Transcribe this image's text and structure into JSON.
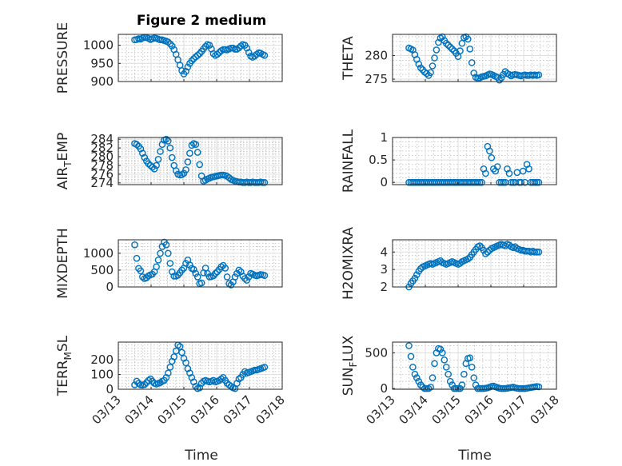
{
  "figure": {
    "title": "Figure 2 medium",
    "xlabel": "Time",
    "marker_color": "#0072bd",
    "axis_color": "#262626"
  },
  "chart_data": [
    {
      "id": "pressure",
      "type": "scatter",
      "title": "Figure 2 medium",
      "ylabel": "PRESSURE",
      "ylim": [
        900,
        1030
      ],
      "yticks": [
        900,
        950,
        1000
      ],
      "ytick_labels": [
        "900",
        "950",
        "1000"
      ],
      "xlim": [
        0,
        5
      ],
      "xticks": [
        0,
        1,
        2,
        3,
        4,
        5
      ],
      "xtick_labels": [
        "03/13",
        "03/14",
        "03/15",
        "03/16",
        "03/17",
        "03/18"
      ],
      "show_x_tick_labels": false,
      "x": [
        0.5,
        0.56,
        0.62,
        0.68,
        0.74,
        0.8,
        0.86,
        0.92,
        0.98,
        1.04,
        1.1,
        1.16,
        1.22,
        1.28,
        1.34,
        1.4,
        1.46,
        1.52,
        1.58,
        1.64,
        1.7,
        1.76,
        1.82,
        1.88,
        1.94,
        2.0,
        2.06,
        2.12,
        2.18,
        2.24,
        2.3,
        2.36,
        2.42,
        2.48,
        2.54,
        2.6,
        2.66,
        2.72,
        2.78,
        2.84,
        2.9,
        2.96,
        3.02,
        3.08,
        3.14,
        3.2,
        3.26,
        3.32,
        3.38,
        3.44,
        3.5,
        3.56,
        3.62,
        3.68,
        3.74,
        3.8,
        3.86,
        3.92,
        3.98,
        4.04,
        4.1,
        4.16,
        4.22,
        4.28,
        4.34,
        4.4,
        4.46
      ],
      "y": [
        1015,
        1016,
        1018,
        1017,
        1020,
        1022,
        1021,
        1019,
        1016,
        1018,
        1020,
        1019,
        1017,
        1015,
        1015,
        1013,
        1011,
        1009,
        1004,
        998,
        988,
        975,
        960,
        945,
        930,
        921,
        928,
        940,
        950,
        957,
        963,
        968,
        972,
        977,
        983,
        990,
        997,
        1002,
        1000,
        990,
        977,
        972,
        975,
        980,
        985,
        988,
        988,
        987,
        990,
        992,
        992,
        989,
        989,
        993,
        998,
        1002,
        1000,
        992,
        980,
        970,
        967,
        970,
        975,
        979,
        978,
        975,
        972
      ]
    },
    {
      "id": "theta",
      "type": "scatter",
      "ylabel": "THETA",
      "ylim": [
        274.5,
        284.5
      ],
      "yticks": [
        275,
        280
      ],
      "ytick_labels": [
        "275",
        "280"
      ],
      "xlim": [
        0,
        5
      ],
      "xticks": [
        0,
        1,
        2,
        3,
        4,
        5
      ],
      "xtick_labels": [
        "03/13",
        "03/14",
        "03/15",
        "03/16",
        "03/17",
        "03/18"
      ],
      "show_x_tick_labels": false,
      "x": [
        0.5,
        0.56,
        0.62,
        0.68,
        0.74,
        0.8,
        0.86,
        0.92,
        0.98,
        1.04,
        1.1,
        1.16,
        1.22,
        1.28,
        1.34,
        1.4,
        1.46,
        1.52,
        1.58,
        1.64,
        1.7,
        1.76,
        1.82,
        1.88,
        1.94,
        2.0,
        2.06,
        2.12,
        2.18,
        2.24,
        2.3,
        2.36,
        2.42,
        2.48,
        2.54,
        2.6,
        2.66,
        2.72,
        2.78,
        2.84,
        2.9,
        2.96,
        3.02,
        3.08,
        3.14,
        3.2,
        3.26,
        3.32,
        3.38,
        3.44,
        3.5,
        3.56,
        3.62,
        3.68,
        3.74,
        3.8,
        3.86,
        3.92,
        3.98,
        4.04,
        4.1,
        4.16,
        4.22,
        4.28,
        4.34,
        4.4,
        4.46
      ],
      "y": [
        281.6,
        281.4,
        281.2,
        280.2,
        279.2,
        278.2,
        277.4,
        277.0,
        276.5,
        276.2,
        275.8,
        276.4,
        277.8,
        279.5,
        281.2,
        282.8,
        283.7,
        284.0,
        283.2,
        282.6,
        282.2,
        281.8,
        281.4,
        281.0,
        280.5,
        279.8,
        281.0,
        282.6,
        283.8,
        284.0,
        283.5,
        281.4,
        278.5,
        276.3,
        275.4,
        275.2,
        275.3,
        275.5,
        275.6,
        275.7,
        275.9,
        276.1,
        276.0,
        275.8,
        275.6,
        275.4,
        274.8,
        275.3,
        276.0,
        276.6,
        276.2,
        276.0,
        275.7,
        275.9,
        276.0,
        275.9,
        275.8,
        275.7,
        275.8,
        275.9,
        275.8,
        275.8,
        275.9,
        275.8,
        275.9,
        275.8,
        275.9
      ]
    },
    {
      "id": "air_temp",
      "type": "scatter",
      "ylabel": "AIR_TEMP",
      "ylabel_display": {
        "base": "AIR",
        "sub": "T",
        "rest": "EMP"
      },
      "ylim": [
        273.6,
        284.4
      ],
      "yticks": [
        274,
        276,
        278,
        280,
        282,
        284
      ],
      "ytick_labels": [
        "274",
        "276",
        "278",
        "280",
        "282",
        "284"
      ],
      "xlim": [
        0,
        5
      ],
      "xticks": [
        0,
        1,
        2,
        3,
        4,
        5
      ],
      "xtick_labels": [
        "03/13",
        "03/14",
        "03/15",
        "03/16",
        "03/17",
        "03/18"
      ],
      "show_x_tick_labels": false,
      "x": [
        0.5,
        0.56,
        0.62,
        0.68,
        0.74,
        0.8,
        0.86,
        0.92,
        0.98,
        1.04,
        1.1,
        1.16,
        1.22,
        1.28,
        1.34,
        1.4,
        1.46,
        1.52,
        1.58,
        1.64,
        1.7,
        1.76,
        1.82,
        1.88,
        1.94,
        2.0,
        2.06,
        2.12,
        2.18,
        2.24,
        2.3,
        2.36,
        2.42,
        2.48,
        2.54,
        2.6,
        2.66,
        2.72,
        2.78,
        2.84,
        2.9,
        2.96,
        3.02,
        3.08,
        3.14,
        3.2,
        3.26,
        3.32,
        3.38,
        3.44,
        3.5,
        3.56,
        3.62,
        3.68,
        3.74,
        3.8,
        3.86,
        3.92,
        3.98,
        4.04,
        4.1,
        4.16,
        4.22,
        4.28,
        4.34,
        4.4,
        4.46
      ],
      "y": [
        283.0,
        282.8,
        282.4,
        281.8,
        280.8,
        279.8,
        279.0,
        278.4,
        278.0,
        277.6,
        277.2,
        278.0,
        279.4,
        281.2,
        282.8,
        283.8,
        284.0,
        283.6,
        282.0,
        279.8,
        278.0,
        276.8,
        276.0,
        275.8,
        275.9,
        276.2,
        277.0,
        278.8,
        280.8,
        282.6,
        283.0,
        282.8,
        281.0,
        278.2,
        275.6,
        274.4,
        274.6,
        274.9,
        275.1,
        275.3,
        275.4,
        275.5,
        275.6,
        275.7,
        275.8,
        275.8,
        275.7,
        275.5,
        275.2,
        274.8,
        274.6,
        274.4,
        274.3,
        274.2,
        274.2,
        274.1,
        274.1,
        274.2,
        274.1,
        274.1,
        274.2,
        274.1,
        274.1,
        274.1,
        274.2,
        274.1,
        274.1
      ]
    },
    {
      "id": "rainfall",
      "type": "scatter",
      "ylabel": "RAINFALL",
      "ylim": [
        -0.05,
        1.0
      ],
      "yticks": [
        0,
        0.5,
        1
      ],
      "ytick_labels": [
        "0",
        "0.5",
        "1"
      ],
      "xlim": [
        0,
        5
      ],
      "xticks": [
        0,
        1,
        2,
        3,
        4,
        5
      ],
      "xtick_labels": [
        "03/13",
        "03/14",
        "03/15",
        "03/16",
        "03/17",
        "03/18"
      ],
      "show_x_tick_labels": false,
      "x": [
        0.5,
        0.56,
        0.62,
        0.68,
        0.74,
        0.8,
        0.86,
        0.92,
        0.98,
        1.04,
        1.1,
        1.16,
        1.22,
        1.28,
        1.34,
        1.4,
        1.46,
        1.52,
        1.58,
        1.64,
        1.7,
        1.76,
        1.82,
        1.88,
        1.94,
        2.0,
        2.06,
        2.12,
        2.18,
        2.24,
        2.3,
        2.36,
        2.42,
        2.48,
        2.54,
        2.6,
        2.66,
        2.72,
        2.78,
        2.84,
        2.9,
        2.96,
        3.02,
        3.08,
        3.14,
        3.2,
        3.26,
        3.32,
        3.38,
        3.44,
        3.5,
        3.56,
        3.62,
        3.68,
        3.74,
        3.8,
        3.86,
        3.92,
        3.98,
        4.04,
        4.1,
        4.16,
        4.22,
        4.28,
        4.34,
        4.4,
        4.46
      ],
      "y": [
        0,
        0,
        0,
        0,
        0,
        0,
        0,
        0,
        0,
        0,
        0,
        0,
        0,
        0,
        0,
        0,
        0,
        0,
        0,
        0,
        0,
        0,
        0,
        0,
        0,
        0,
        0,
        0,
        0,
        0,
        0,
        0,
        0,
        0,
        0,
        0,
        0,
        0,
        0.3,
        0.2,
        0.8,
        0.7,
        0.55,
        0.3,
        0.25,
        0.35,
        0,
        0,
        0,
        0,
        0.3,
        0.2,
        0,
        0,
        0,
        0.22,
        0,
        0,
        0.25,
        0,
        0.4,
        0.3,
        0,
        0,
        0,
        0,
        0
      ]
    },
    {
      "id": "mixdepth",
      "type": "scatter",
      "ylabel": "MIXDEPTH",
      "ylim": [
        0,
        1400
      ],
      "yticks": [
        0,
        500,
        1000
      ],
      "ytick_labels": [
        "0",
        "500",
        "1000"
      ],
      "xlim": [
        0,
        5
      ],
      "xticks": [
        0,
        1,
        2,
        3,
        4,
        5
      ],
      "xtick_labels": [
        "03/13",
        "03/14",
        "03/15",
        "03/16",
        "03/17",
        "03/18"
      ],
      "show_x_tick_labels": false,
      "x": [
        0.5,
        0.56,
        0.62,
        0.68,
        0.74,
        0.8,
        0.86,
        0.92,
        0.98,
        1.04,
        1.1,
        1.16,
        1.22,
        1.28,
        1.34,
        1.4,
        1.46,
        1.52,
        1.58,
        1.64,
        1.7,
        1.76,
        1.82,
        1.88,
        1.94,
        2.0,
        2.06,
        2.12,
        2.18,
        2.24,
        2.3,
        2.36,
        2.42,
        2.48,
        2.54,
        2.6,
        2.66,
        2.72,
        2.78,
        2.84,
        2.9,
        2.96,
        3.02,
        3.08,
        3.14,
        3.2,
        3.26,
        3.32,
        3.38,
        3.44,
        3.5,
        3.56,
        3.62,
        3.68,
        3.74,
        3.8,
        3.86,
        3.92,
        3.98,
        4.04,
        4.1,
        4.16,
        4.22,
        4.28,
        4.34,
        4.4,
        4.46
      ],
      "y": [
        1250,
        850,
        550,
        480,
        300,
        250,
        270,
        330,
        360,
        380,
        450,
        600,
        800,
        1000,
        1200,
        1330,
        1250,
        1000,
        700,
        450,
        320,
        320,
        350,
        420,
        500,
        560,
        700,
        800,
        650,
        550,
        520,
        400,
        300,
        100,
        120,
        420,
        560,
        400,
        300,
        310,
        330,
        400,
        450,
        520,
        600,
        640,
        560,
        300,
        100,
        60,
        150,
        300,
        400,
        500,
        450,
        320,
        250,
        200,
        300,
        400,
        380,
        350,
        330,
        350,
        370,
        360,
        340
      ]
    },
    {
      "id": "h2omixra",
      "type": "scatter",
      "ylabel": "H2OMIXRA",
      "ylim": [
        2,
        4.7
      ],
      "yticks": [
        2,
        3,
        4
      ],
      "ytick_labels": [
        "2",
        "3",
        "4"
      ],
      "xlim": [
        0,
        5
      ],
      "xticks": [
        0,
        1,
        2,
        3,
        4,
        5
      ],
      "xtick_labels": [
        "03/13",
        "03/14",
        "03/15",
        "03/16",
        "03/17",
        "03/18"
      ],
      "show_x_tick_labels": false,
      "x": [
        0.5,
        0.56,
        0.62,
        0.68,
        0.74,
        0.8,
        0.86,
        0.92,
        0.98,
        1.04,
        1.1,
        1.16,
        1.22,
        1.28,
        1.34,
        1.4,
        1.46,
        1.52,
        1.58,
        1.64,
        1.7,
        1.76,
        1.82,
        1.88,
        1.94,
        2.0,
        2.06,
        2.12,
        2.18,
        2.24,
        2.3,
        2.36,
        2.42,
        2.48,
        2.54,
        2.6,
        2.66,
        2.72,
        2.78,
        2.84,
        2.9,
        2.96,
        3.02,
        3.08,
        3.14,
        3.2,
        3.26,
        3.32,
        3.38,
        3.44,
        3.5,
        3.56,
        3.62,
        3.68,
        3.74,
        3.8,
        3.86,
        3.92,
        3.98,
        4.04,
        4.1,
        4.16,
        4.22,
        4.28,
        4.34,
        4.4,
        4.46
      ],
      "y": [
        2.0,
        2.2,
        2.35,
        2.5,
        2.7,
        2.9,
        3.05,
        3.15,
        3.2,
        3.25,
        3.3,
        3.35,
        3.3,
        3.35,
        3.4,
        3.45,
        3.5,
        3.4,
        3.35,
        3.3,
        3.35,
        3.4,
        3.45,
        3.4,
        3.35,
        3.3,
        3.35,
        3.45,
        3.5,
        3.55,
        3.6,
        3.7,
        3.85,
        4.0,
        4.15,
        4.3,
        4.35,
        4.25,
        4.1,
        3.9,
        4.0,
        4.1,
        4.2,
        4.25,
        4.3,
        4.35,
        4.4,
        4.45,
        4.4,
        4.35,
        4.45,
        4.4,
        4.3,
        4.25,
        4.3,
        4.2,
        4.15,
        4.1,
        4.1,
        4.05,
        4.05,
        4.05,
        4.0,
        4.05,
        4.0,
        4.0,
        4.0
      ]
    },
    {
      "id": "terr_msl",
      "type": "scatter",
      "ylabel": "TERR_MSL",
      "ylabel_display": {
        "base": "TERR",
        "sub": "M",
        "rest": "SL"
      },
      "ylim": [
        0,
        320
      ],
      "yticks": [
        0,
        100,
        200
      ],
      "ytick_labels": [
        "0",
        "100",
        "200"
      ],
      "xlim": [
        0,
        5
      ],
      "xticks": [
        0,
        1,
        2,
        3,
        4,
        5
      ],
      "xtick_labels": [
        "03/13",
        "03/14",
        "03/15",
        "03/16",
        "03/17",
        "03/18"
      ],
      "show_x_tick_labels": true,
      "x": [
        0.5,
        0.56,
        0.62,
        0.68,
        0.74,
        0.8,
        0.86,
        0.92,
        0.98,
        1.04,
        1.1,
        1.16,
        1.22,
        1.28,
        1.34,
        1.4,
        1.46,
        1.52,
        1.58,
        1.64,
        1.7,
        1.76,
        1.82,
        1.88,
        1.94,
        2.0,
        2.06,
        2.12,
        2.18,
        2.24,
        2.3,
        2.36,
        2.42,
        2.48,
        2.54,
        2.6,
        2.66,
        2.72,
        2.78,
        2.84,
        2.9,
        2.96,
        3.02,
        3.08,
        3.14,
        3.2,
        3.26,
        3.32,
        3.38,
        3.44,
        3.5,
        3.56,
        3.62,
        3.68,
        3.74,
        3.8,
        3.86,
        3.92,
        3.98,
        4.04,
        4.1,
        4.16,
        4.22,
        4.28,
        4.34,
        4.4,
        4.46
      ],
      "y": [
        30,
        55,
        40,
        30,
        28,
        32,
        45,
        60,
        70,
        55,
        40,
        35,
        40,
        45,
        55,
        60,
        80,
        110,
        150,
        190,
        220,
        260,
        300,
        290,
        250,
        210,
        180,
        140,
        110,
        80,
        50,
        20,
        5,
        10,
        40,
        55,
        60,
        55,
        50,
        55,
        60,
        50,
        55,
        60,
        70,
        80,
        60,
        40,
        30,
        20,
        10,
        5,
        40,
        70,
        80,
        100,
        120,
        110,
        115,
        120,
        125,
        130,
        130,
        135,
        140,
        145,
        150
      ]
    },
    {
      "id": "sun_flux",
      "type": "scatter",
      "ylabel": "SUN_FLUX",
      "ylabel_display": {
        "base": "SUN",
        "sub": "F",
        "rest": "LUX"
      },
      "ylim": [
        -10,
        650
      ],
      "yticks": [
        0,
        500
      ],
      "ytick_labels": [
        "0",
        "500"
      ],
      "xlim": [
        0,
        5
      ],
      "xticks": [
        0,
        1,
        2,
        3,
        4,
        5
      ],
      "xtick_labels": [
        "03/13",
        "03/14",
        "03/15",
        "03/16",
        "03/17",
        "03/18"
      ],
      "show_x_tick_labels": true,
      "x": [
        0.5,
        0.56,
        0.62,
        0.68,
        0.74,
        0.8,
        0.86,
        0.92,
        0.98,
        1.04,
        1.1,
        1.16,
        1.22,
        1.28,
        1.34,
        1.4,
        1.46,
        1.52,
        1.58,
        1.64,
        1.7,
        1.76,
        1.82,
        1.88,
        1.94,
        2.0,
        2.06,
        2.12,
        2.18,
        2.24,
        2.3,
        2.36,
        2.42,
        2.48,
        2.54,
        2.6,
        2.66,
        2.72,
        2.78,
        2.84,
        2.9,
        2.96,
        3.02,
        3.08,
        3.14,
        3.2,
        3.26,
        3.32,
        3.38,
        3.44,
        3.5,
        3.56,
        3.62,
        3.68,
        3.74,
        3.8,
        3.86,
        3.92,
        3.98,
        4.04,
        4.1,
        4.16,
        4.22,
        4.28,
        4.34,
        4.4,
        4.46
      ],
      "y": [
        600,
        450,
        300,
        200,
        150,
        100,
        50,
        20,
        0,
        0,
        0,
        20,
        150,
        350,
        500,
        560,
        550,
        500,
        400,
        300,
        200,
        100,
        50,
        0,
        0,
        0,
        0,
        50,
        200,
        350,
        420,
        430,
        300,
        150,
        50,
        0,
        0,
        0,
        0,
        5,
        10,
        20,
        30,
        35,
        25,
        15,
        5,
        0,
        0,
        0,
        5,
        10,
        15,
        20,
        10,
        5,
        0,
        0,
        0,
        0,
        5,
        10,
        15,
        20,
        25,
        28,
        25
      ]
    }
  ]
}
